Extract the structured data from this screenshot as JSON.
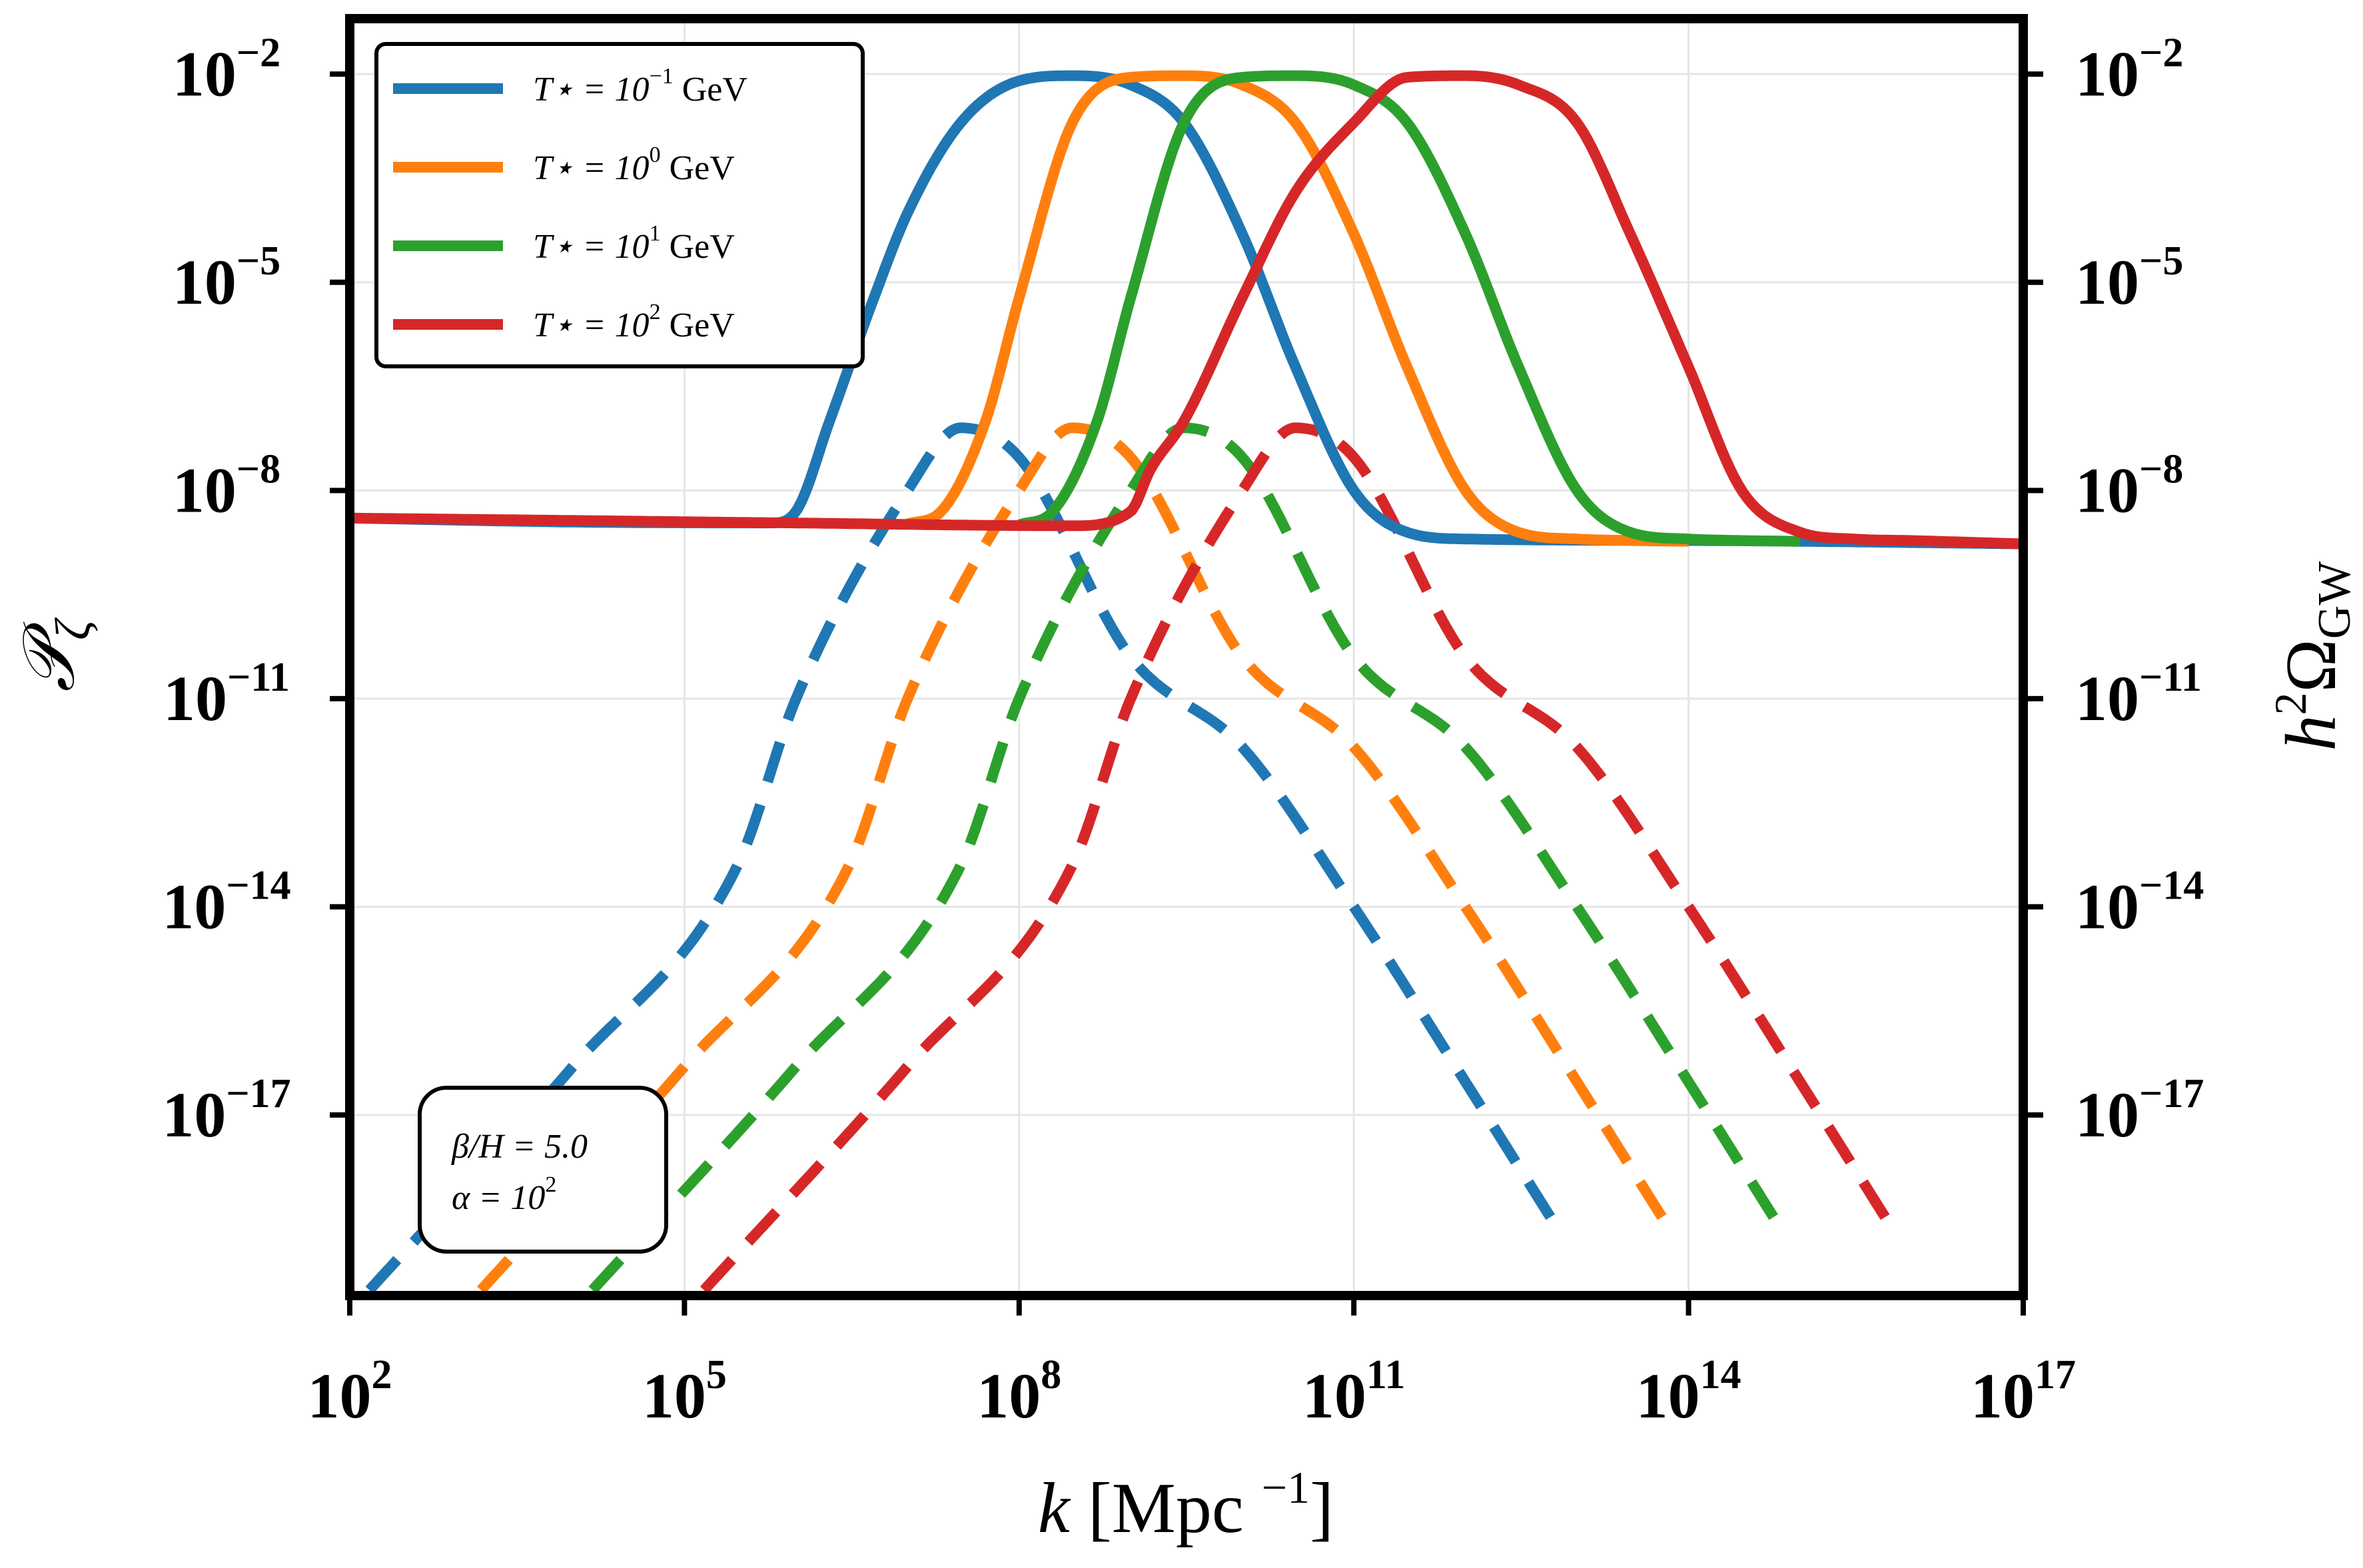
{
  "chart_data": {
    "type": "line",
    "xscale": "log",
    "yscale": "log",
    "xlim": [
      100,
      1e+17
    ],
    "ylim_left": [
      2.5e-20,
      0.063
    ],
    "ylim_right": [
      2.5e-20,
      0.063
    ],
    "grid": true,
    "legend_position": "top-left",
    "x_ticks": [
      {
        "value": 100.0,
        "base": "10",
        "exp": "2"
      },
      {
        "value": 100000.0,
        "base": "10",
        "exp": "5"
      },
      {
        "value": 100000000.0,
        "base": "10",
        "exp": "8"
      },
      {
        "value": 100000000000.0,
        "base": "10",
        "exp": "11"
      },
      {
        "value": 100000000000000.0,
        "base": "10",
        "exp": "14"
      },
      {
        "value": 1e+17,
        "base": "10",
        "exp": "17"
      }
    ],
    "y_ticks": [
      {
        "value": 0.01,
        "base": "10",
        "exp": "−2"
      },
      {
        "value": 1e-05,
        "base": "10",
        "exp": "−5"
      },
      {
        "value": 1e-08,
        "base": "10",
        "exp": "−8"
      },
      {
        "value": 1e-11,
        "base": "10",
        "exp": "−11"
      },
      {
        "value": 1e-14,
        "base": "10",
        "exp": "−14"
      },
      {
        "value": 1e-17,
        "base": "10",
        "exp": "−17"
      }
    ],
    "xlabel": {
      "pre": "k [Mpc",
      "sup": "−1",
      "post": "]"
    },
    "ylabel_left": "𝒫",
    "ylabel_left_sub": "ζ",
    "ylabel_right": {
      "pre": "h",
      "sup": "2",
      "main": "Ω",
      "sub": "GW"
    },
    "annotation": {
      "line1": "β/H = 5.0",
      "line2_pre": "α = 10",
      "line2_sup": "2"
    },
    "series": [
      {
        "legend_pre": "T⋆ = 10",
        "legend_sup": "−1",
        "legend_post": " GeV",
        "color": "#1f77b4",
        "P_zeta": {
          "k": [
            100,
            10000.0,
            600000.0,
            1000000.0,
            2000000.0,
            5000000.0,
            10000000.0,
            30000000.0,
            100000000.0,
            300000000.0,
            1000000000.0,
            3000000000.0,
            10000000000.0,
            30000000000.0,
            100000000000.0,
            300000000000.0,
            1000000000000.0,
            100000000000000.0,
            1e+17
          ],
          "y": [
            4e-09,
            3.5e-09,
            3.4e-09,
            5e-09,
            1e-07,
            6e-06,
            0.0001,
            0.002,
            0.008,
            0.0095,
            0.007,
            0.002,
            5e-05,
            6e-07,
            1e-08,
            2.5e-09,
            2e-09,
            1.9e-09,
            1.7e-09
          ]
        },
        "Omega_GW": {
          "k": [
            150.0,
            10000.0,
            300000.0,
            1000000.0,
            10000000.0,
            30000000.0,
            100000000.0,
            1000000000.0,
            10000000000.0,
            100000000000.0,
            1000000000000.0,
            6500000000000.0
          ],
          "y": [
            3e-20,
            5e-17,
            4e-14,
            1e-11,
            1e-08,
            8e-08,
            3e-08,
            4e-11,
            2e-12,
            1e-14,
            3e-17,
            2.5e-19
          ]
        }
      },
      {
        "legend_pre": "T⋆ = 10",
        "legend_sup": "0",
        "legend_post": " GeV",
        "color": "#ff7f0e",
        "P_zeta": {
          "k": [
            10000000.0,
            20000000.0,
            50000000.0,
            100000000.0,
            300000000.0,
            1000000000.0,
            3000000000.0,
            10000000000.0,
            30000000000.0,
            100000000000.0,
            300000000000.0,
            1000000000000.0,
            3000000000000.0,
            10000000000000.0,
            30000000000000.0,
            100000000000000.0
          ],
          "y": [
            3.3e-09,
            5e-09,
            1e-07,
            6e-06,
            0.002,
            0.009,
            0.0095,
            0.007,
            0.002,
            5e-05,
            6e-07,
            1e-08,
            2.5e-09,
            2e-09,
            1.9e-09,
            1.85e-09
          ]
        },
        "Omega_GW": {
          "k": [
            1500.0,
            100000.0,
            3000000.0,
            10000000.0,
            100000000.0,
            300000000.0,
            1000000000.0,
            10000000000.0,
            100000000000.0,
            1000000000000.0,
            10000000000000.0,
            65000000000000.0
          ],
          "y": [
            3e-20,
            5e-17,
            4e-14,
            1e-11,
            1e-08,
            8e-08,
            3e-08,
            4e-11,
            2e-12,
            1e-14,
            3e-17,
            2.5e-19
          ]
        }
      },
      {
        "legend_pre": "T⋆ = 10",
        "legend_sup": "1",
        "legend_post": " GeV",
        "color": "#2ca02c",
        "P_zeta": {
          "k": [
            100000000.0,
            200000000.0,
            500000000.0,
            1000000000.0,
            3000000000.0,
            10000000000.0,
            30000000000.0,
            100000000000.0,
            300000000000.0,
            1000000000000.0,
            3000000000000.0,
            10000000000000.0,
            30000000000000.0,
            100000000000000.0,
            300000000000000.0,
            1000000000000000.0
          ],
          "y": [
            3.2e-09,
            5e-09,
            1e-07,
            6e-06,
            0.002,
            0.009,
            0.0095,
            0.007,
            0.002,
            5e-05,
            6e-07,
            1e-08,
            2.5e-09,
            2e-09,
            1.9e-09,
            1.85e-09
          ]
        },
        "Omega_GW": {
          "k": [
            15000.0,
            1000000.0,
            30000000.0,
            100000000.0,
            1000000000.0,
            3000000000.0,
            10000000000.0,
            100000000000.0,
            1000000000000.0,
            10000000000000.0,
            100000000000000.0,
            650000000000000.0
          ],
          "y": [
            3e-20,
            5e-17,
            4e-14,
            1e-11,
            1e-08,
            8e-08,
            3e-08,
            4e-11,
            2e-12,
            1e-14,
            3e-17,
            2.5e-19
          ]
        }
      },
      {
        "legend_pre": "T⋆ = 10",
        "legend_sup": "2",
        "legend_post": " GeV",
        "color": "#d62728",
        "P_zeta": {
          "k": [
            100,
            10000.0,
            1000000.0,
            300000000.0,
            1000000000.0,
            1500000000.0,
            3000000000.0,
            10000000000.0,
            30000000000.0,
            100000000000.0,
            300000000000.0,
            1000000000000.0,
            3000000000000.0,
            10000000000000.0,
            30000000000000.0,
            100000000000000.0,
            300000000000000.0,
            1000000000000000.0,
            3000000000000000.0,
            1e+16,
            1e+17
          ],
          "y": [
            4e-09,
            3.7e-09,
            3.4e-09,
            3.1e-09,
            5e-09,
            2e-08,
            1e-07,
            6e-06,
            0.0002,
            0.002,
            0.009,
            0.0095,
            0.007,
            0.002,
            5e-05,
            6e-07,
            1e-08,
            2.5e-09,
            2e-09,
            1.9e-09,
            1.7e-09
          ]
        },
        "Omega_GW": {
          "k": [
            150000.0,
            10000000.0,
            300000000.0,
            1000000000.0,
            10000000000.0,
            30000000000.0,
            100000000000.0,
            1000000000000.0,
            10000000000000.0,
            100000000000000.0,
            1000000000000000.0,
            6500000000000000.0
          ],
          "y": [
            3e-20,
            5e-17,
            4e-14,
            1e-11,
            1e-08,
            8e-08,
            3e-08,
            4e-11,
            2e-12,
            1e-14,
            3e-17,
            2.5e-19
          ]
        }
      }
    ]
  }
}
